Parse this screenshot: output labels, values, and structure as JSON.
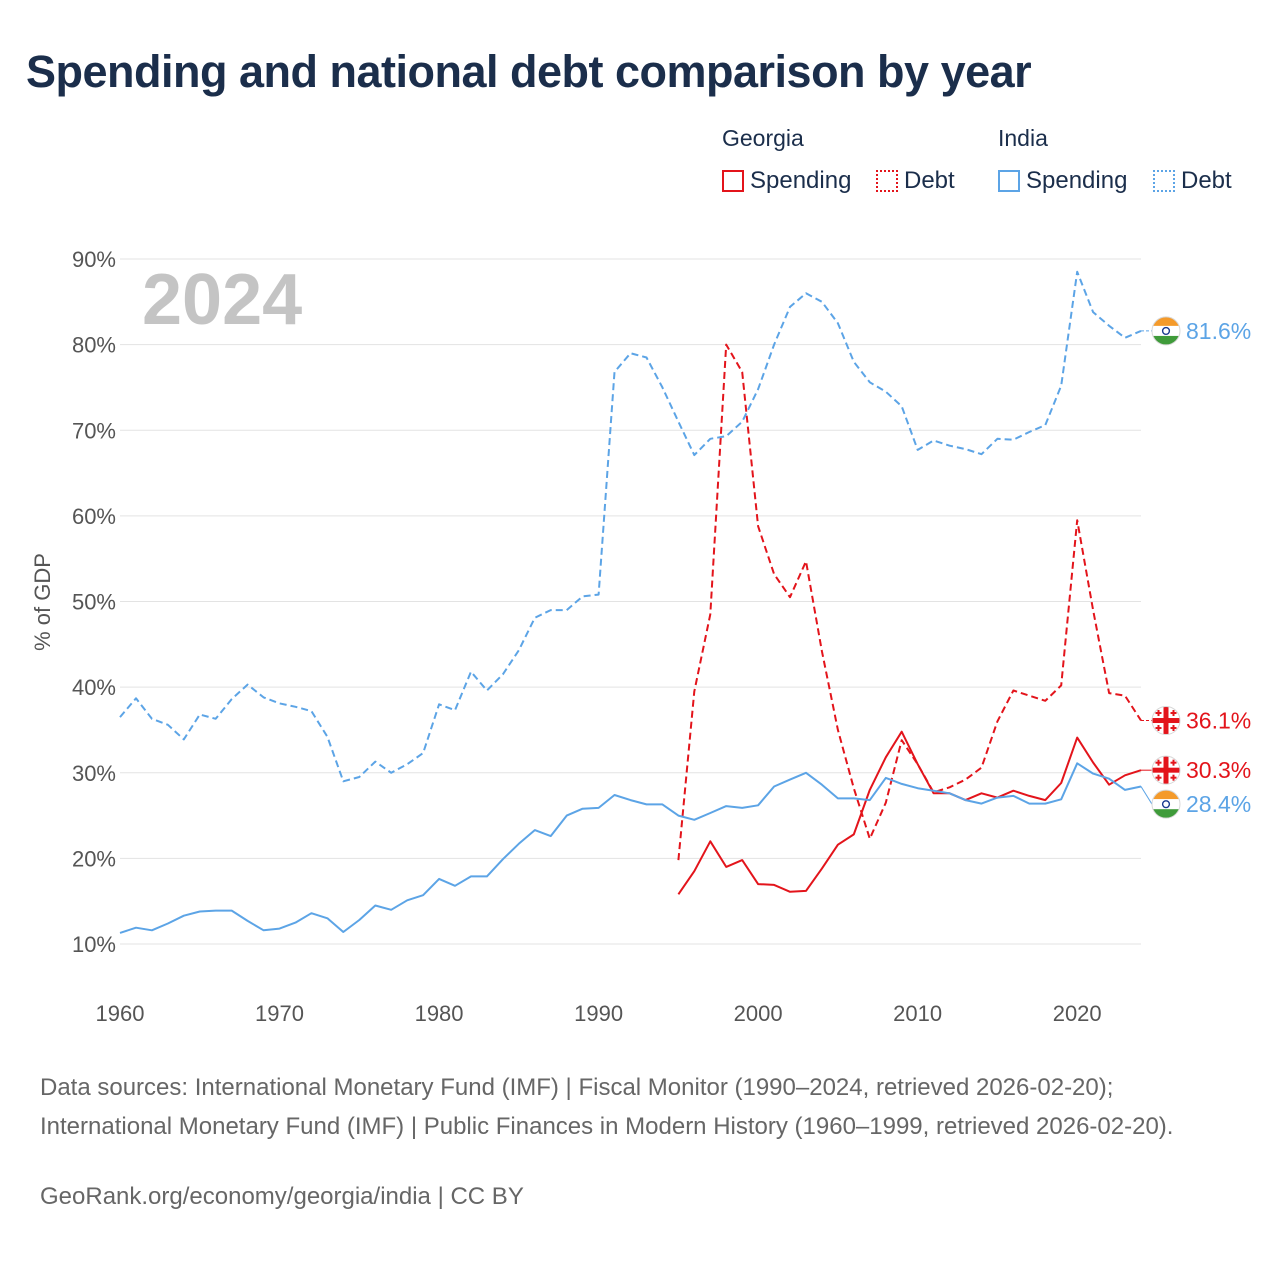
{
  "title": "Spending and national debt comparison by year",
  "legend": {
    "groups": [
      {
        "title": "Georgia",
        "spending_label": "Spending",
        "debt_label": "Debt",
        "color": "#e3141b"
      },
      {
        "title": "India",
        "spending_label": "Spending",
        "debt_label": "Debt",
        "color": "#5ca4e6"
      }
    ]
  },
  "footer": {
    "sources": "Data sources: International Monetary Fund (IMF) | Fiscal Monitor (1990–2024, retrieved 2026-02-20); International Monetary Fund (IMF) | Public Finances in Modern History (1960–1999, retrieved 2026-02-20).",
    "credit": "GeoRank.org/economy/georgia/india | CC BY"
  },
  "chart_data": {
    "type": "line",
    "title": "Spending and national debt comparison by year",
    "watermark_year": "2024",
    "xlabel": "",
    "ylabel": "% of GDP",
    "xlim": [
      1960,
      2024
    ],
    "ylim": [
      10,
      90
    ],
    "x_ticks": [
      1960,
      1970,
      1980,
      1990,
      2000,
      2010,
      2020
    ],
    "y_ticks": [
      10,
      20,
      30,
      40,
      50,
      60,
      70,
      80,
      90
    ],
    "y_tick_labels": [
      "10%",
      "20%",
      "30%",
      "40%",
      "50%",
      "60%",
      "70%",
      "80%",
      "90%"
    ],
    "series": [
      {
        "name": "Georgia Spending",
        "country": "Georgia",
        "kind": "spending",
        "color": "#e3141b",
        "dashed": false,
        "end_label": "30.3%",
        "start_year": 1995,
        "values": [
          15.8,
          18.5,
          22.0,
          19.0,
          19.8,
          17.0,
          16.9,
          16.1,
          16.2,
          18.8,
          21.6,
          22.8,
          28.0,
          31.8,
          34.8,
          31.0,
          27.6,
          27.6,
          26.8,
          27.6,
          27.1,
          27.9,
          27.3,
          26.8,
          28.8,
          34.1,
          31.2,
          28.6,
          29.7,
          30.3
        ]
      },
      {
        "name": "Georgia Debt",
        "country": "Georgia",
        "kind": "debt",
        "color": "#e3141b",
        "dashed": true,
        "end_label": "36.1%",
        "start_year": 1995,
        "values": [
          19.8,
          39.5,
          48.5,
          80.0,
          76.8,
          58.8,
          53.2,
          50.5,
          54.7,
          44.2,
          35.0,
          28.2,
          22.3,
          26.5,
          33.8,
          31.0,
          27.7,
          28.3,
          29.2,
          30.6,
          36.0,
          39.6,
          39.0,
          38.4,
          40.2,
          59.5,
          49.0,
          39.3,
          39.0,
          36.1
        ]
      },
      {
        "name": "India Spending",
        "country": "India",
        "kind": "spending",
        "color": "#5ca4e6",
        "dashed": false,
        "end_label": "28.4%",
        "start_year": 1960,
        "values": [
          11.3,
          11.9,
          11.6,
          12.4,
          13.3,
          13.8,
          13.9,
          13.9,
          12.7,
          11.6,
          11.8,
          12.5,
          13.6,
          13.0,
          11.4,
          12.8,
          14.5,
          14.0,
          15.1,
          15.7,
          17.6,
          16.8,
          17.9,
          17.9,
          19.9,
          21.7,
          23.3,
          22.6,
          25.0,
          25.8,
          25.9,
          27.4,
          26.8,
          26.3,
          26.3,
          25.0,
          24.5,
          25.3,
          26.1,
          25.9,
          26.2,
          28.4,
          29.2,
          30.0,
          28.6,
          27.0,
          27.0,
          26.8,
          29.4,
          28.7,
          28.2,
          27.9,
          27.6,
          26.8,
          26.4,
          27.1,
          27.3,
          26.4,
          26.4,
          26.9,
          31.1,
          29.9,
          29.3,
          28.0,
          28.4
        ]
      },
      {
        "name": "India Debt",
        "country": "India",
        "kind": "debt",
        "color": "#5ca4e6",
        "dashed": true,
        "end_label": "81.6%",
        "start_year": 1960,
        "values": [
          36.5,
          38.7,
          36.3,
          35.6,
          33.9,
          36.8,
          36.3,
          38.6,
          40.3,
          38.8,
          38.1,
          37.7,
          37.2,
          34.2,
          29.0,
          29.5,
          31.3,
          30.0,
          31.0,
          32.3,
          38.0,
          37.3,
          41.8,
          39.6,
          41.5,
          44.3,
          48.1,
          49.0,
          49.0,
          50.6,
          50.8,
          76.8,
          79.0,
          78.5,
          75.0,
          71.0,
          67.1,
          69.0,
          69.3,
          71.0,
          74.8,
          80.0,
          84.4,
          86.0,
          85.0,
          82.5,
          78.0,
          75.6,
          74.5,
          72.8,
          67.7,
          68.8,
          68.2,
          67.8,
          67.2,
          69.0,
          68.9,
          69.8,
          70.6,
          75.2,
          88.5,
          83.8,
          82.2,
          80.8,
          81.6
        ]
      }
    ]
  }
}
